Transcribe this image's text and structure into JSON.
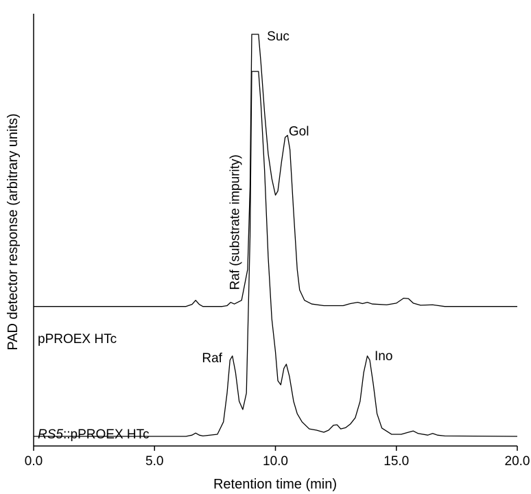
{
  "chart_data": {
    "type": "line",
    "xlabel": "Retention time (min)",
    "ylabel": "PAD detector response (arbitrary units)",
    "xlim": [
      0.0,
      20.0
    ],
    "x_ticks": [
      {
        "value": 0,
        "label": "0.0"
      },
      {
        "value": 5,
        "label": "5.0"
      },
      {
        "value": 10,
        "label": "10.0"
      },
      {
        "value": 15,
        "label": "15.0"
      },
      {
        "value": 20,
        "label": "20.0"
      }
    ],
    "y_ticks": "none",
    "grid": false,
    "legend": "none",
    "series": [
      {
        "label_plain": "pPROEX HTc",
        "baseline": 0.33,
        "points": [
          [
            0,
            0.33
          ],
          [
            6.3,
            0.33
          ],
          [
            6.55,
            0.335
          ],
          [
            6.7,
            0.345
          ],
          [
            6.85,
            0.335
          ],
          [
            7.0,
            0.33
          ],
          [
            7.8,
            0.33
          ],
          [
            8.0,
            0.332
          ],
          [
            8.15,
            0.34
          ],
          [
            8.3,
            0.336
          ],
          [
            8.6,
            0.345
          ],
          [
            8.85,
            0.42
          ],
          [
            8.95,
            0.62
          ],
          [
            9.02,
            0.99
          ],
          [
            9.3,
            0.99
          ],
          [
            9.4,
            0.92
          ],
          [
            9.55,
            0.8
          ],
          [
            9.7,
            0.7
          ],
          [
            9.85,
            0.64
          ],
          [
            10.0,
            0.6
          ],
          [
            10.1,
            0.61
          ],
          [
            10.25,
            0.68
          ],
          [
            10.4,
            0.74
          ],
          [
            10.5,
            0.745
          ],
          [
            10.6,
            0.71
          ],
          [
            10.75,
            0.56
          ],
          [
            10.9,
            0.42
          ],
          [
            11.0,
            0.37
          ],
          [
            11.2,
            0.345
          ],
          [
            11.5,
            0.336
          ],
          [
            12.0,
            0.332
          ],
          [
            12.8,
            0.332
          ],
          [
            13.1,
            0.337
          ],
          [
            13.4,
            0.34
          ],
          [
            13.6,
            0.337
          ],
          [
            13.8,
            0.34
          ],
          [
            14.0,
            0.336
          ],
          [
            14.6,
            0.334
          ],
          [
            15.0,
            0.338
          ],
          [
            15.3,
            0.35
          ],
          [
            15.5,
            0.349
          ],
          [
            15.7,
            0.338
          ],
          [
            16.0,
            0.333
          ],
          [
            16.5,
            0.334
          ],
          [
            17.0,
            0.33
          ],
          [
            20.0,
            0.33
          ]
        ]
      },
      {
        "label_italic": "RS5",
        "label_plain": "::pPROEX HTc",
        "baseline": 0.015,
        "points": [
          [
            0,
            0.015
          ],
          [
            6.3,
            0.015
          ],
          [
            6.55,
            0.018
          ],
          [
            6.7,
            0.023
          ],
          [
            6.85,
            0.018
          ],
          [
            7.0,
            0.016
          ],
          [
            7.6,
            0.02
          ],
          [
            7.85,
            0.05
          ],
          [
            8.0,
            0.12
          ],
          [
            8.12,
            0.2
          ],
          [
            8.22,
            0.21
          ],
          [
            8.35,
            0.17
          ],
          [
            8.5,
            0.1
          ],
          [
            8.65,
            0.08
          ],
          [
            8.8,
            0.12
          ],
          [
            8.95,
            0.5
          ],
          [
            9.02,
            0.9
          ],
          [
            9.3,
            0.9
          ],
          [
            9.4,
            0.82
          ],
          [
            9.55,
            0.66
          ],
          [
            9.7,
            0.45
          ],
          [
            9.85,
            0.3
          ],
          [
            10.0,
            0.22
          ],
          [
            10.1,
            0.15
          ],
          [
            10.22,
            0.14
          ],
          [
            10.35,
            0.18
          ],
          [
            10.45,
            0.19
          ],
          [
            10.58,
            0.16
          ],
          [
            10.75,
            0.1
          ],
          [
            10.9,
            0.07
          ],
          [
            11.1,
            0.05
          ],
          [
            11.4,
            0.033
          ],
          [
            11.7,
            0.03
          ],
          [
            12.0,
            0.025
          ],
          [
            12.2,
            0.03
          ],
          [
            12.4,
            0.042
          ],
          [
            12.55,
            0.043
          ],
          [
            12.7,
            0.033
          ],
          [
            12.9,
            0.036
          ],
          [
            13.1,
            0.045
          ],
          [
            13.3,
            0.06
          ],
          [
            13.5,
            0.1
          ],
          [
            13.65,
            0.17
          ],
          [
            13.8,
            0.21
          ],
          [
            13.9,
            0.2
          ],
          [
            14.05,
            0.14
          ],
          [
            14.2,
            0.07
          ],
          [
            14.4,
            0.035
          ],
          [
            14.8,
            0.02
          ],
          [
            15.2,
            0.02
          ],
          [
            15.5,
            0.025
          ],
          [
            15.7,
            0.028
          ],
          [
            15.9,
            0.022
          ],
          [
            16.3,
            0.018
          ],
          [
            16.5,
            0.022
          ],
          [
            16.7,
            0.018
          ],
          [
            17.0,
            0.016
          ],
          [
            20.0,
            0.015
          ]
        ]
      }
    ],
    "annotations": [
      {
        "text": "Suc",
        "x": 9.65,
        "y": 0.975
      },
      {
        "text": "Gol",
        "x": 10.55,
        "y": 0.745
      },
      {
        "text": "Raf (substrate impurity)",
        "x": 8.3,
        "y": 0.37,
        "rotate": -90
      },
      {
        "text": "Raf",
        "x": 7.8,
        "y": 0.195,
        "anchor": "end"
      },
      {
        "text": "Ino",
        "x": 14.1,
        "y": 0.2
      }
    ]
  }
}
